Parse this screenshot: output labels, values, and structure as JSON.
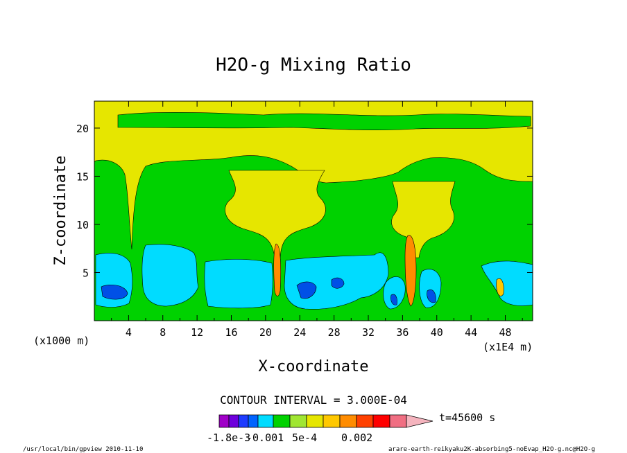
{
  "chart_data": {
    "type": "heatmap",
    "title": "H2O-g Mixing Ratio",
    "xlabel": "X-coordinate",
    "ylabel": "Z-coordinate",
    "x_unit_label": "(x1E4 m)",
    "y_unit_label": "(x1000 m)",
    "x_ticks": [
      "4",
      "8",
      "12",
      "16",
      "20",
      "24",
      "28",
      "32",
      "36",
      "40",
      "44",
      "48"
    ],
    "y_ticks": [
      "5",
      "10",
      "15",
      "20"
    ],
    "xlim": [
      0,
      51.2
    ],
    "ylim": [
      0,
      22.8
    ],
    "contour_interval_text": "CONTOUR INTERVAL = 3.000E-04",
    "colorbar_labels": [
      "-1.8e-3",
      "-0.001",
      "5e-4",
      "0.002"
    ],
    "time_label": "t=45600 s",
    "palette": [
      "#a000c8",
      "#6e00dc",
      "#1e3cff",
      "#0064ff",
      "#00dcff",
      "#00d200",
      "#a0e632",
      "#e6e600",
      "#ffc800",
      "#ff8c00",
      "#ff4000",
      "#ff0000",
      "#f06e82",
      "#f5b4be"
    ],
    "colors": {
      "background_yellow": "#e6e600",
      "green": "#00d200",
      "cyan": "#00dcff",
      "blue": "#0050e6",
      "orange": "#ff8c00"
    },
    "footer_left": "/usr/local/bin/gpview  2010-11-10",
    "footer_right": "arare-earth-reikyaku2K-absorbing5-noEvap_H2O-g.nc@H2O-g"
  }
}
